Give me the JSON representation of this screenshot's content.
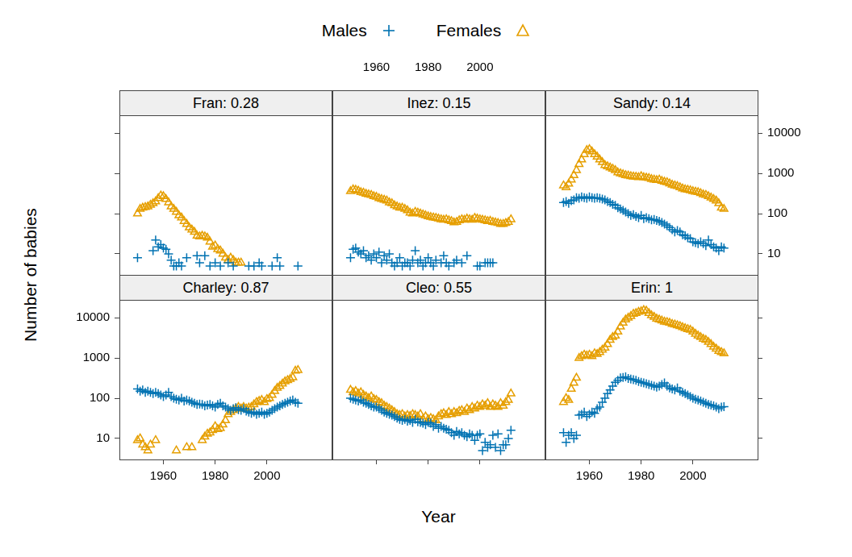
{
  "chart_data": {
    "type": "scatter",
    "x_label": "Year",
    "y_label": "Number of babies",
    "log": "y",
    "grid": false,
    "legend": "top",
    "xlim": [
      1943,
      2025
    ],
    "ylim": [
      3,
      28000
    ],
    "xticks": [
      1960,
      1980,
      2000
    ],
    "yticks": [
      10,
      100,
      1000,
      10000
    ],
    "series": [
      {
        "name": "Males",
        "color": "#0072B2",
        "marker": "plus"
      },
      {
        "name": "Females",
        "color": "#E69F00",
        "marker": "triangle"
      }
    ],
    "x": [
      1950,
      1951,
      1952,
      1953,
      1954,
      1955,
      1956,
      1957,
      1958,
      1959,
      1960,
      1961,
      1962,
      1963,
      1964,
      1965,
      1966,
      1967,
      1968,
      1969,
      1970,
      1971,
      1972,
      1973,
      1974,
      1975,
      1976,
      1977,
      1978,
      1979,
      1980,
      1981,
      1982,
      1983,
      1984,
      1985,
      1986,
      1987,
      1988,
      1989,
      1990,
      1991,
      1992,
      1993,
      1994,
      1995,
      1996,
      1997,
      1998,
      1999,
      2000,
      2001,
      2002,
      2003,
      2004,
      2005,
      2006,
      2007,
      2008,
      2009,
      2010,
      2011,
      2012
    ],
    "panels": [
      {
        "title": "Fran: 0.28",
        "values": [
          [
            8,
            null,
            null,
            null,
            null,
            null,
            12,
            22,
            15,
            17,
            14,
            13,
            10,
            7,
            5,
            5,
            6,
            5,
            null,
            8,
            null,
            null,
            null,
            9,
            6,
            null,
            9,
            null,
            5,
            null,
            6,
            null,
            5,
            null,
            null,
            6,
            null,
            5,
            null,
            null,
            null,
            null,
            null,
            5,
            null,
            5,
            null,
            6,
            5,
            null,
            null,
            null,
            5,
            null,
            8,
            5,
            null,
            null,
            null,
            null,
            null,
            null,
            5
          ],
          [
            100,
            130,
            140,
            145,
            150,
            165,
            180,
            200,
            240,
            280,
            270,
            230,
            190,
            150,
            130,
            110,
            90,
            80,
            65,
            55,
            45,
            40,
            35,
            28,
            27,
            28,
            27,
            25,
            20,
            15,
            16,
            13,
            12,
            10,
            8,
            7,
            8,
            7,
            6,
            6,
            6,
            null,
            null,
            null,
            null,
            null,
            null,
            null,
            null,
            null,
            null,
            null,
            null,
            null,
            null,
            null,
            null,
            null,
            null,
            null,
            null,
            null,
            null
          ]
        ]
      },
      {
        "title": "Inez: 0.15",
        "values": [
          [
            8,
            13,
            14,
            11,
            10,
            12,
            8,
            9,
            7,
            10,
            8,
            11,
            6,
            9,
            7,
            10,
            6,
            5,
            6,
            8,
            5,
            6,
            6,
            5,
            7,
            12,
            6,
            7,
            5,
            6,
            8,
            6,
            5,
            7,
            null,
            6,
            9,
            6,
            5,
            null,
            6,
            7,
            null,
            6,
            null,
            9,
            null,
            null,
            null,
            5,
            5,
            null,
            6,
            6,
            6,
            6,
            null,
            null,
            null,
            null,
            null,
            null,
            null
          ],
          [
            360,
            400,
            390,
            370,
            340,
            330,
            310,
            300,
            290,
            270,
            260,
            240,
            230,
            220,
            210,
            190,
            180,
            160,
            150,
            140,
            140,
            130,
            120,
            105,
            100,
            110,
            105,
            100,
            95,
            90,
            85,
            82,
            80,
            78,
            75,
            72,
            70,
            72,
            68,
            65,
            60,
            62,
            68,
            72,
            70,
            75,
            72,
            70,
            78,
            75,
            72,
            70,
            68,
            65,
            66,
            62,
            60,
            58,
            55,
            55,
            58,
            62,
            72
          ]
        ]
      },
      {
        "title": "Sandy: 0.14",
        "values": [
          [
            190,
            200,
            180,
            210,
            220,
            250,
            240,
            260,
            250,
            240,
            260,
            250,
            240,
            250,
            240,
            230,
            220,
            200,
            190,
            170,
            160,
            140,
            130,
            120,
            110,
            100,
            90,
            95,
            85,
            80,
            90,
            75,
            80,
            75,
            70,
            72,
            68,
            65,
            60,
            55,
            50,
            45,
            40,
            35,
            38,
            35,
            30,
            28,
            25,
            24,
            20,
            19,
            18,
            20,
            18,
            16,
            22,
            17,
            15,
            14,
            12,
            15,
            14
          ],
          [
            500,
            450,
            550,
            700,
            900,
            1200,
            1700,
            2200,
            3000,
            3800,
            4000,
            3500,
            3000,
            2600,
            2200,
            1900,
            1600,
            1500,
            1400,
            1300,
            1200,
            1050,
            1000,
            950,
            900,
            880,
            850,
            830,
            820,
            800,
            850,
            800,
            780,
            760,
            720,
            700,
            680,
            700,
            650,
            620,
            600,
            560,
            520,
            500,
            480,
            450,
            420,
            400,
            390,
            380,
            360,
            350,
            340,
            320,
            300,
            290,
            270,
            250,
            230,
            210,
            180,
            140,
            130
          ]
        ]
      },
      {
        "title": "Charley: 0.87",
        "values": [
          [
            170,
            150,
            160,
            140,
            150,
            140,
            130,
            140,
            130,
            120,
            110,
            120,
            140,
            110,
            100,
            95,
            90,
            100,
            85,
            90,
            85,
            80,
            75,
            70,
            72,
            70,
            65,
            68,
            70,
            65,
            60,
            70,
            75,
            65,
            60,
            55,
            50,
            55,
            58,
            52,
            50,
            55,
            48,
            45,
            42,
            45,
            40,
            42,
            45,
            40,
            42,
            45,
            50,
            55,
            60,
            65,
            70,
            75,
            80,
            85,
            90,
            80,
            75
          ],
          [
            9,
            10,
            7,
            6,
            5,
            7,
            null,
            9,
            null,
            null,
            null,
            null,
            null,
            null,
            null,
            5,
            null,
            null,
            null,
            6,
            null,
            6,
            null,
            null,
            null,
            9,
            11,
            13,
            14,
            16,
            20,
            17,
            18,
            22,
            28,
            40,
            45,
            50,
            55,
            60,
            55,
            60,
            55,
            58,
            60,
            70,
            80,
            85,
            90,
            80,
            95,
            100,
            120,
            150,
            180,
            200,
            230,
            260,
            280,
            300,
            330,
            480,
            500
          ]
        ]
      },
      {
        "title": "Cleo: 0.55",
        "values": [
          [
            100,
            95,
            90,
            85,
            90,
            80,
            75,
            70,
            65,
            60,
            60,
            55,
            50,
            45,
            42,
            40,
            38,
            35,
            32,
            30,
            28,
            30,
            27,
            28,
            25,
            30,
            26,
            25,
            24,
            22,
            25,
            24,
            20,
            22,
            18,
            20,
            18,
            17,
            16,
            14,
            12,
            15,
            13,
            14,
            12,
            11,
            13,
            12,
            9,
            12,
            13,
            5,
            8,
            6,
            7,
            12,
            6,
            13,
            5,
            7,
            7,
            10,
            16
          ],
          [
            160,
            140,
            150,
            130,
            140,
            120,
            110,
            100,
            110,
            95,
            90,
            80,
            75,
            65,
            60,
            55,
            50,
            45,
            40,
            38,
            40,
            35,
            38,
            36,
            40,
            38,
            35,
            40,
            30,
            35,
            30,
            32,
            30,
            28,
            35,
            40,
            42,
            38,
            45,
            40,
            45,
            42,
            48,
            50,
            45,
            55,
            50,
            60,
            55,
            65,
            60,
            70,
            65,
            75,
            60,
            70,
            65,
            60,
            75,
            65,
            80,
            90,
            130
          ]
        ]
      },
      {
        "title": "Erin: 1",
        "values": [
          [
            14,
            8,
            12,
            14,
            10,
            12,
            38,
            40,
            45,
            35,
            40,
            45,
            42,
            55,
            60,
            80,
            100,
            130,
            160,
            200,
            250,
            280,
            320,
            330,
            340,
            310,
            300,
            290,
            280,
            260,
            250,
            240,
            230,
            220,
            210,
            200,
            190,
            200,
            220,
            240,
            200,
            180,
            170,
            160,
            180,
            150,
            140,
            130,
            120,
            110,
            100,
            95,
            90,
            85,
            80,
            75,
            70,
            68,
            65,
            60,
            55,
            60,
            62
          ],
          [
            80,
            100,
            90,
            170,
            240,
            320,
            1000,
            1100,
            1200,
            1150,
            1200,
            1100,
            1300,
            1250,
            1400,
            1600,
            1800,
            2200,
            2800,
            3300,
            3600,
            4500,
            6000,
            7500,
            9000,
            10000,
            11000,
            12500,
            13000,
            14000,
            14500,
            15500,
            15000,
            13000,
            11500,
            10500,
            9500,
            9000,
            8500,
            8000,
            7800,
            7500,
            7000,
            6800,
            6500,
            6200,
            5800,
            5500,
            5200,
            5000,
            4500,
            4000,
            3600,
            3300,
            3000,
            2800,
            2500,
            2200,
            1900,
            1700,
            1500,
            1400,
            1300
          ]
        ]
      }
    ]
  }
}
